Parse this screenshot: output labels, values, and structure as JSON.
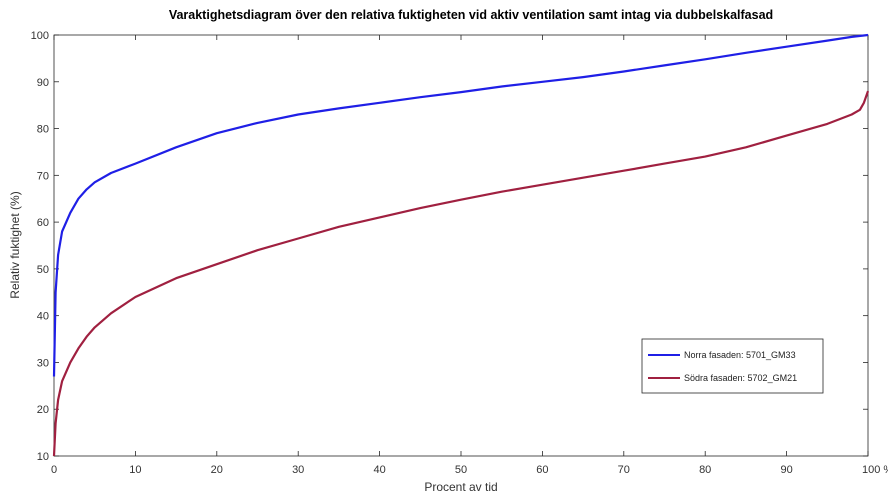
{
  "chart_data": {
    "type": "line",
    "title": "Varaktighetsdiagram över den relativa fuktigheten vid aktiv ventilation samt intag via dubbelskalfasad",
    "xlabel": "Procent av tid",
    "ylabel": "Relativ fuktighet (%)",
    "xlim": [
      0,
      100
    ],
    "ylim": [
      10,
      100
    ],
    "x_ticks": [
      "0",
      "10",
      "20",
      "30",
      "40",
      "50",
      "60",
      "70",
      "80",
      "90",
      "100 %"
    ],
    "y_ticks": [
      "10",
      "20",
      "30",
      "40",
      "50",
      "60",
      "70",
      "80",
      "90",
      "100"
    ],
    "grid": false,
    "legend_position": "bottom-right",
    "series": [
      {
        "name": "Norra fasaden: 5701_GM33",
        "color": "#1f1fe6",
        "x": [
          0,
          0.2,
          0.5,
          1,
          2,
          3,
          4,
          5,
          7,
          10,
          15,
          20,
          25,
          30,
          35,
          40,
          45,
          50,
          55,
          60,
          65,
          70,
          75,
          80,
          85,
          90,
          95,
          98,
          100
        ],
        "y": [
          27,
          45,
          53,
          58,
          62,
          65,
          67,
          68.5,
          70.5,
          72.5,
          76,
          79,
          81.2,
          83,
          84.3,
          85.5,
          86.7,
          87.8,
          89,
          90,
          91,
          92.2,
          93.5,
          94.8,
          96.2,
          97.5,
          98.8,
          99.6,
          100
        ]
      },
      {
        "name": "Södra fasaden: 5702_GM21",
        "color": "#a02040",
        "x": [
          0,
          0.2,
          0.5,
          1,
          2,
          3,
          4,
          5,
          7,
          10,
          15,
          20,
          25,
          30,
          35,
          40,
          45,
          50,
          55,
          60,
          65,
          70,
          75,
          80,
          85,
          90,
          95,
          98,
          99,
          99.5,
          100
        ],
        "y": [
          10,
          17,
          22,
          26,
          30,
          33,
          35.5,
          37.5,
          40.5,
          44,
          48,
          51,
          54,
          56.5,
          59,
          61,
          63,
          64.8,
          66.5,
          68,
          69.5,
          71,
          72.5,
          74,
          76,
          78.5,
          81,
          83,
          84,
          85.5,
          88
        ]
      }
    ]
  }
}
